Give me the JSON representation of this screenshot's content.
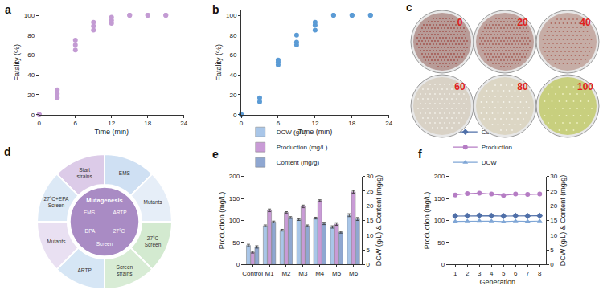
{
  "chart_data": [
    {
      "title": "a",
      "type": "scatter",
      "xlabel": "Time (min)",
      "ylabel": "Fatality (%)",
      "x": [
        0,
        0,
        0,
        3,
        3,
        3,
        6,
        6,
        6,
        9,
        9,
        9,
        12,
        12,
        12,
        15,
        15,
        18,
        18,
        21,
        21
      ],
      "values": [
        0,
        0,
        0,
        17,
        21,
        25,
        65,
        70,
        75,
        85,
        89,
        93,
        92,
        95,
        98,
        100,
        100,
        100,
        100,
        100,
        100
      ],
      "color": "#c39bd3",
      "marker": "circle",
      "xlim": [
        0,
        24
      ],
      "xticks": [
        0,
        6,
        12,
        18,
        24
      ],
      "ylim": [
        0,
        105
      ],
      "yticks": [
        0,
        20,
        40,
        60,
        80,
        100
      ],
      "grid": false
    },
    {
      "title": "b",
      "type": "scatter",
      "xlabel": "Time (min)",
      "ylabel": "Fatality (%)",
      "x": [
        0,
        0,
        0,
        3,
        3,
        6,
        6,
        6,
        9,
        9,
        9,
        12,
        12,
        12,
        15,
        15,
        18,
        18,
        21,
        21
      ],
      "values": [
        0,
        0,
        0,
        13,
        17,
        50,
        53,
        55,
        70,
        73,
        80,
        85,
        90,
        93,
        100,
        100,
        100,
        100,
        100,
        100
      ],
      "color": "#5b9bd5",
      "marker": "circle",
      "xlim": [
        0,
        24
      ],
      "xticks": [
        0,
        6,
        12,
        18,
        24
      ],
      "ylim": [
        0,
        105
      ],
      "yticks": [
        0,
        20,
        40,
        60,
        80,
        100
      ],
      "grid": false
    },
    {
      "title": "e",
      "type": "bar",
      "ylabel": "Production (mg/L)",
      "y2label": "DCW (g/L) & Content (mg/g)",
      "categories": [
        "Control",
        "M1",
        "M2",
        "M3",
        "M4",
        "M5",
        "M6"
      ],
      "series": [
        {
          "name": "DCW (g/L)",
          "color": "#a9c6e8",
          "axis": "y2",
          "values": [
            6.5,
            13.2,
            11.7,
            15.3,
            15.8,
            12.8,
            16.8
          ],
          "errors": [
            0.4,
            0.3,
            0.3,
            0.3,
            0.3,
            0.4,
            0.5
          ]
        },
        {
          "name": "Production (mg/L)",
          "color": "#c99bd6",
          "values": [
            28,
            123,
            118,
            132,
            145,
            92,
            165
          ],
          "errors": [
            2,
            3,
            2,
            3,
            2,
            3,
            3
          ]
        },
        {
          "name": "Content (mg/g)",
          "color": "#8fa7d1",
          "axis": "y2",
          "values": [
            6.0,
            14.5,
            16.0,
            13.2,
            14.0,
            11.0,
            15.5
          ],
          "errors": [
            0.4,
            0.3,
            0.3,
            0.3,
            0.4,
            0.3,
            0.5
          ]
        }
      ],
      "ylim": [
        0,
        200
      ],
      "yticks": [
        0,
        50,
        100,
        150,
        200
      ],
      "y2lim": [
        0,
        30
      ],
      "y2ticks": [
        0,
        5,
        10,
        15,
        20,
        25,
        30
      ],
      "legend": "top left",
      "grid": false
    },
    {
      "title": "f",
      "type": "line",
      "xlabel": "Generation",
      "ylabel": "Production (mg/L)",
      "y2label": "DCW (g/L) & Content (mg/g)",
      "x": [
        1,
        2,
        3,
        4,
        5,
        6,
        7,
        8
      ],
      "series": [
        {
          "name": "Content",
          "color": "#4f6fa8",
          "axis": "y2",
          "marker": "diamond",
          "line_style": "solid",
          "values": [
            16.5,
            16.6,
            16.7,
            16.6,
            16.5,
            16.6,
            16.5,
            16.6
          ]
        },
        {
          "name": "Production",
          "color": "#b57cc4",
          "marker": "circle",
          "line_style": "solid",
          "values": [
            158,
            161,
            162,
            160,
            157,
            160,
            159,
            160
          ]
        },
        {
          "name": "DCW",
          "color": "#7fa6d6",
          "axis": "y2",
          "marker": "triangle-up",
          "line_style": "solid",
          "values": [
            14.7,
            14.8,
            14.9,
            14.8,
            14.6,
            14.8,
            14.7,
            14.8
          ]
        }
      ],
      "xlim": [
        0.5,
        8.5
      ],
      "xticks": [
        1,
        2,
        3,
        4,
        5,
        6,
        7,
        8
      ],
      "ylim": [
        0,
        200
      ],
      "yticks": [
        0,
        50,
        100,
        150,
        200
      ],
      "y2lim": [
        0,
        30
      ],
      "y2ticks": [
        0,
        5,
        10,
        15,
        20,
        25,
        30
      ],
      "legend": "top left",
      "grid": false
    }
  ],
  "panel_c": {
    "label": "c",
    "dishes": [
      "0",
      "20",
      "40",
      "60",
      "80",
      "100"
    ]
  },
  "panel_d": {
    "label": "d",
    "ring": [
      "Start strains",
      "EMS",
      "Mutants",
      "27°C Screen",
      "Screen strains",
      "ARTP",
      "Mutants",
      "27°C+EPA Screen"
    ],
    "center": [
      "Mutagenesis",
      "EMS",
      "ARTP",
      "DPA",
      "27°C",
      "Screen"
    ]
  }
}
